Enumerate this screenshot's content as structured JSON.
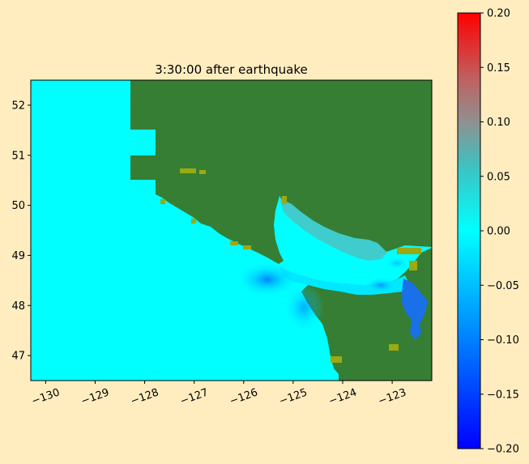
{
  "chart_data": {
    "type": "heatmap",
    "title": "3:30:00 after earthquake",
    "xlabel": "",
    "ylabel": "",
    "xlim": [
      -130.3,
      -122.2
    ],
    "ylim": [
      46.5,
      52.5
    ],
    "xticks": [
      -130,
      -129,
      -128,
      -127,
      -126,
      -125,
      -124,
      -123
    ],
    "yticks": [
      47,
      48,
      49,
      50,
      51,
      52
    ],
    "colorbar": {
      "range": [
        -0.2,
        0.2
      ],
      "ticks": [
        0.2,
        0.15,
        0.1,
        0.05,
        0.0,
        -0.05,
        -0.1,
        -0.15,
        -0.2
      ],
      "tick_labels": [
        "0.20",
        "0.15",
        "0.10",
        "0.05",
        "0.00",
        "−0.05",
        "−0.10",
        "−0.15",
        "−0.20"
      ],
      "colors": [
        "#0000ff",
        "#00ffff",
        "#cc8080",
        "#ff0000"
      ]
    },
    "colors": {
      "land": "#367e34",
      "ocean_zero": "#00ffff",
      "shoreline_highlight": "#9aaa10"
    },
    "grid": false
  }
}
